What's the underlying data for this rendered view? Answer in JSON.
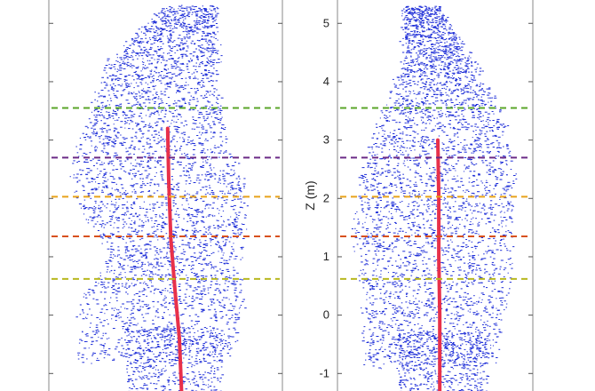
{
  "chart_data": [
    {
      "type": "scatter",
      "panel": "left",
      "description_series": [
        "foliage points",
        "stem points"
      ],
      "ylim": [
        -1.3,
        5.4
      ],
      "yticks": [],
      "ylabel": "",
      "height_lines": [
        {
          "z": 3.55,
          "color": "#5aa62a"
        },
        {
          "z": 2.7,
          "color": "#6b2a86"
        },
        {
          "z": 2.03,
          "color": "#e8a21a"
        },
        {
          "z": 1.35,
          "color": "#d8511e"
        },
        {
          "z": 0.62,
          "color": "#b8b820"
        }
      ],
      "stem": [
        [
          0.12,
          -1.3
        ],
        [
          0.1,
          -0.4
        ],
        [
          0.06,
          0.4
        ],
        [
          0.02,
          1.3
        ],
        [
          0.0,
          2.3
        ],
        [
          -0.01,
          3.2
        ]
      ],
      "crown_extent": [
        [
          -0.85,
          0.2
        ],
        [
          -0.55,
          1.0
        ],
        [
          -0.95,
          2.2
        ],
        [
          -0.75,
          3.5
        ],
        [
          -0.55,
          4.4
        ],
        [
          -0.05,
          5.3
        ],
        [
          0.45,
          4.2
        ],
        [
          0.55,
          3.0
        ],
        [
          0.75,
          2.0
        ],
        [
          0.65,
          0.9
        ],
        [
          0.7,
          0.1
        ],
        [
          0.55,
          -0.8
        ]
      ]
    },
    {
      "type": "scatter",
      "panel": "right",
      "ylim": [
        -1.3,
        5.4
      ],
      "yticks": [
        -1,
        0,
        1,
        2,
        3,
        4,
        5
      ],
      "ylabel": "Z (m)",
      "height_lines": [
        {
          "z": 3.55,
          "color": "#5aa62a"
        },
        {
          "z": 2.7,
          "color": "#6b2a86"
        },
        {
          "z": 2.03,
          "color": "#e8a21a"
        },
        {
          "z": 1.35,
          "color": "#d8511e"
        },
        {
          "z": 0.62,
          "color": "#b8b820"
        }
      ],
      "stem": [
        [
          0.02,
          -1.3
        ],
        [
          0.02,
          0.0
        ],
        [
          0.01,
          1.0
        ],
        [
          0.01,
          2.0
        ],
        [
          0.0,
          3.0
        ]
      ],
      "crown_extent": [
        [
          -0.75,
          0.2
        ],
        [
          -0.85,
          1.2
        ],
        [
          -0.8,
          2.3
        ],
        [
          -0.6,
          3.3
        ],
        [
          -0.35,
          4.4
        ],
        [
          0.0,
          5.3
        ],
        [
          0.35,
          4.4
        ],
        [
          0.65,
          3.4
        ],
        [
          0.78,
          2.3
        ],
        [
          0.72,
          1.2
        ],
        [
          0.7,
          0.2
        ],
        [
          0.55,
          -0.9
        ]
      ]
    }
  ],
  "colors": {
    "foliage": "#1f2fd8",
    "stem": "#e8314a",
    "axis": "#888888"
  }
}
